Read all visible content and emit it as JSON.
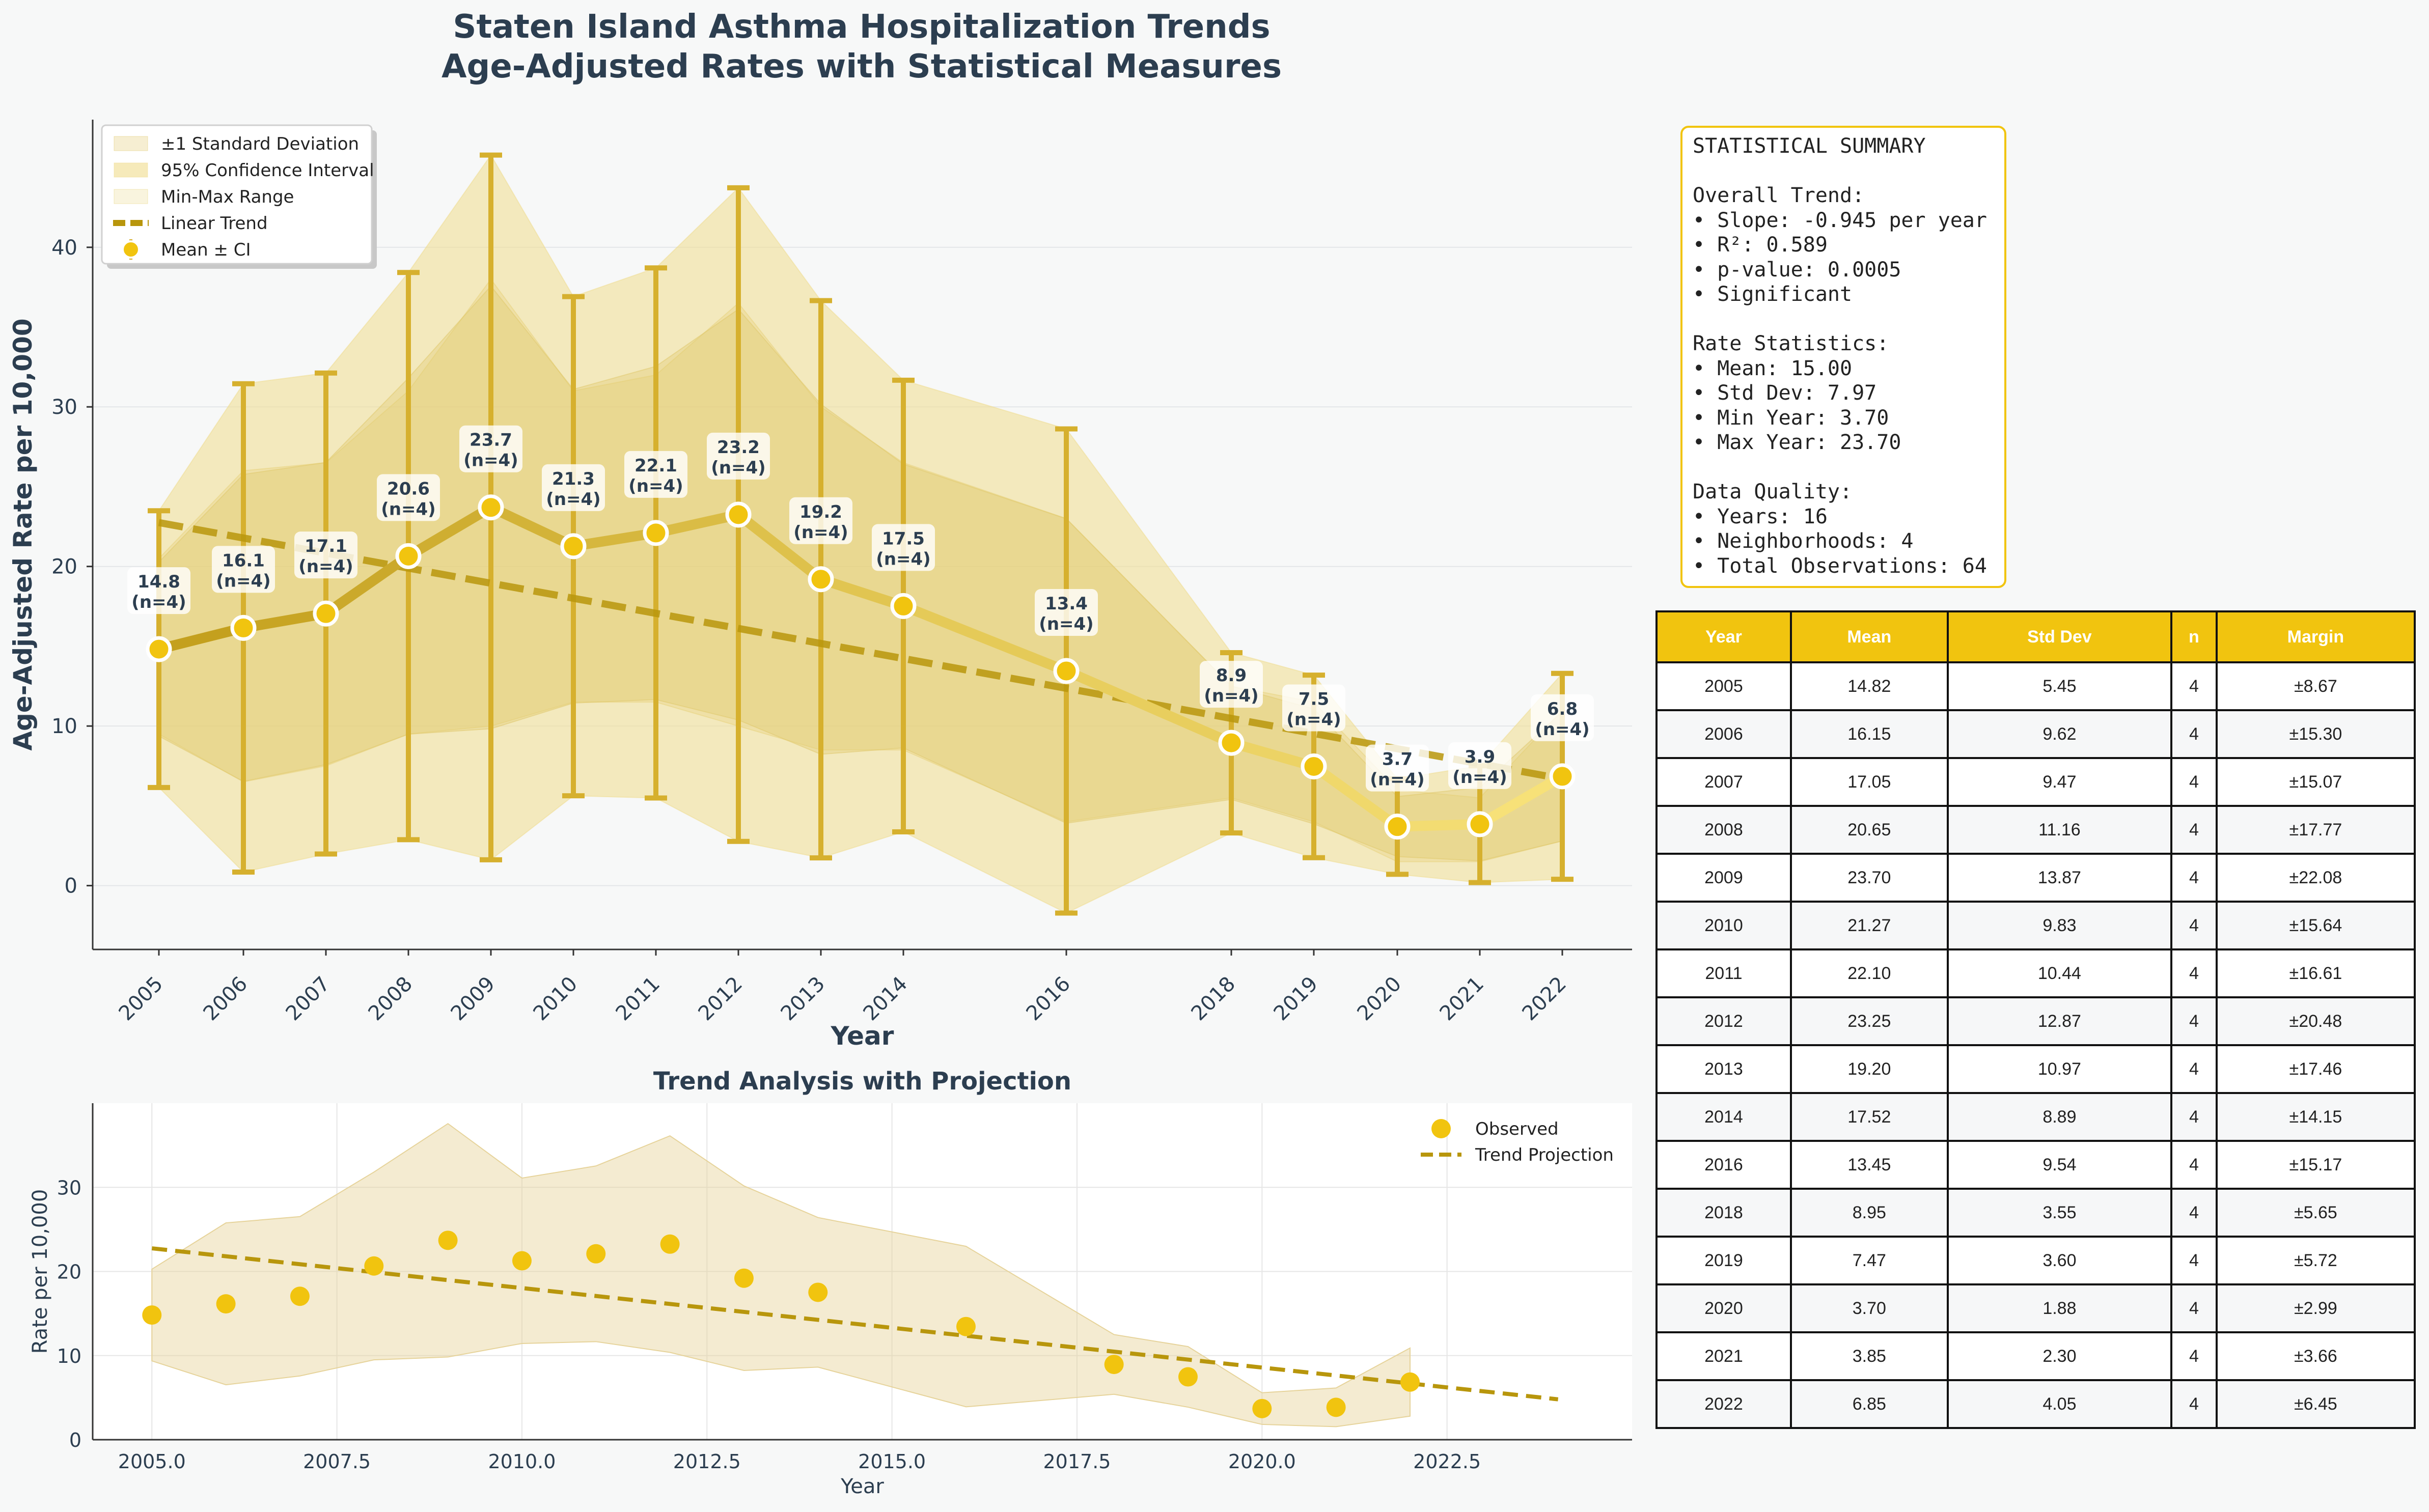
{
  "title_lines": [
    "Staten Island Asthma Hospitalization Trends",
    "Age-Adjusted Rates with Statistical Measures"
  ],
  "colors": {
    "accent": "#f1c40f",
    "line_dark": "#c9a227",
    "trend": "#b8960c",
    "band": "#f0dc8c",
    "text": "#2c3e50"
  },
  "chart_data": [
    {
      "type": "line",
      "xlabel": "Year",
      "ylabel": "Age-Adjusted Rate per 10,000",
      "ylim": [
        -4,
        48
      ],
      "yticks": [
        0,
        10,
        20,
        30,
        40
      ],
      "categories": [
        "2005",
        "2006",
        "2007",
        "2008",
        "2009",
        "2010",
        "2011",
        "2012",
        "2013",
        "2014",
        "2016",
        "2018",
        "2019",
        "2020",
        "2021",
        "2022"
      ],
      "x": [
        2005,
        2006,
        2007,
        2008,
        2009,
        2010,
        2011,
        2012,
        2013,
        2014,
        2016,
        2018,
        2019,
        2020,
        2021,
        2022
      ],
      "point_labels": [
        "14.8\n(n=4)",
        "16.1\n(n=4)",
        "17.1\n(n=4)",
        "20.6\n(n=4)",
        "23.7\n(n=4)",
        "21.3\n(n=4)",
        "22.1\n(n=4)",
        "23.2\n(n=4)",
        "19.2\n(n=4)",
        "17.5\n(n=4)",
        "13.4\n(n=4)",
        "8.9\n(n=4)",
        "7.5\n(n=4)",
        "3.7\n(n=4)",
        "3.9\n(n=4)",
        "6.8\n(n=4)"
      ],
      "series": [
        {
          "name": "Mean ± CI",
          "values": [
            14.82,
            16.15,
            17.05,
            20.65,
            23.7,
            21.27,
            22.1,
            23.25,
            19.2,
            17.52,
            13.45,
            8.95,
            7.47,
            3.7,
            3.85,
            6.85
          ],
          "margin": [
            8.67,
            15.3,
            15.07,
            17.77,
            22.08,
            15.64,
            16.61,
            20.48,
            17.46,
            14.15,
            15.17,
            5.65,
            5.72,
            2.99,
            3.66,
            6.45
          ]
        },
        {
          "name": "±1 Standard Deviation",
          "values": [
            5.45,
            9.62,
            9.47,
            11.16,
            13.87,
            9.83,
            10.44,
            12.87,
            10.97,
            8.89,
            9.54,
            3.55,
            3.6,
            1.88,
            2.3,
            4.05
          ]
        },
        {
          "name": "95% Confidence Interval"
        },
        {
          "name": "Min-Max Range",
          "min": [
            9.5,
            6.5,
            7.5,
            9.5,
            10.0,
            11.5,
            11.5,
            10.0,
            8.5,
            8.5,
            4.0,
            5.5,
            4.0,
            1.5,
            1.5,
            2.8
          ],
          "max": [
            20.5,
            26.0,
            26.5,
            31.0,
            38.0,
            31.0,
            32.0,
            36.5,
            30.0,
            26.5,
            23.0,
            12.5,
            11.5,
            6.0,
            5.5,
            11.0
          ]
        },
        {
          "name": "Linear Trend",
          "from": [
            2005,
            22.75
          ],
          "to": [
            2022,
            6.69
          ]
        }
      ],
      "legend": "top-left"
    },
    {
      "type": "scatter",
      "title": "Trend Analysis with Projection",
      "xlabel": "Year",
      "ylabel": "Rate per 10,000",
      "xlim": [
        2004.2,
        2025.0
      ],
      "ylim": [
        0,
        40
      ],
      "xticks": [
        "2005.0",
        "2007.5",
        "2010.0",
        "2012.5",
        "2015.0",
        "2017.5",
        "2020.0",
        "2022.5"
      ],
      "yticks": [
        0,
        10,
        20,
        30
      ],
      "series": [
        {
          "name": "Observed"
        },
        {
          "name": "Trend Projection",
          "from": [
            2005,
            22.75
          ],
          "to": [
            2024,
            4.8
          ]
        }
      ],
      "legend": "top-right"
    }
  ],
  "summary_text": "STATISTICAL SUMMARY\n\nOverall Trend:\n• Slope: -0.945 per year\n• R²: 0.589\n• p-value: 0.0005\n• Significant\n\nRate Statistics:\n• Mean: 15.00\n• Std Dev: 7.97\n• Min Year: 3.70\n• Max Year: 23.70\n\nData Quality:\n• Years: 16\n• Neighborhoods: 4\n• Total Observations: 64",
  "table": {
    "headers": [
      "Year",
      "Mean",
      "Std Dev",
      "n",
      "Margin"
    ],
    "rows": [
      [
        "2005",
        "14.82",
        "5.45",
        "4",
        "±8.67"
      ],
      [
        "2006",
        "16.15",
        "9.62",
        "4",
        "±15.30"
      ],
      [
        "2007",
        "17.05",
        "9.47",
        "4",
        "±15.07"
      ],
      [
        "2008",
        "20.65",
        "11.16",
        "4",
        "±17.77"
      ],
      [
        "2009",
        "23.70",
        "13.87",
        "4",
        "±22.08"
      ],
      [
        "2010",
        "21.27",
        "9.83",
        "4",
        "±15.64"
      ],
      [
        "2011",
        "22.10",
        "10.44",
        "4",
        "±16.61"
      ],
      [
        "2012",
        "23.25",
        "12.87",
        "4",
        "±20.48"
      ],
      [
        "2013",
        "19.20",
        "10.97",
        "4",
        "±17.46"
      ],
      [
        "2014",
        "17.52",
        "8.89",
        "4",
        "±14.15"
      ],
      [
        "2016",
        "13.45",
        "9.54",
        "4",
        "±15.17"
      ],
      [
        "2018",
        "8.95",
        "3.55",
        "4",
        "±5.65"
      ],
      [
        "2019",
        "7.47",
        "3.60",
        "4",
        "±5.72"
      ],
      [
        "2020",
        "3.70",
        "1.88",
        "4",
        "±2.99"
      ],
      [
        "2021",
        "3.85",
        "2.30",
        "4",
        "±3.66"
      ],
      [
        "2022",
        "6.85",
        "4.05",
        "4",
        "±6.45"
      ]
    ]
  }
}
